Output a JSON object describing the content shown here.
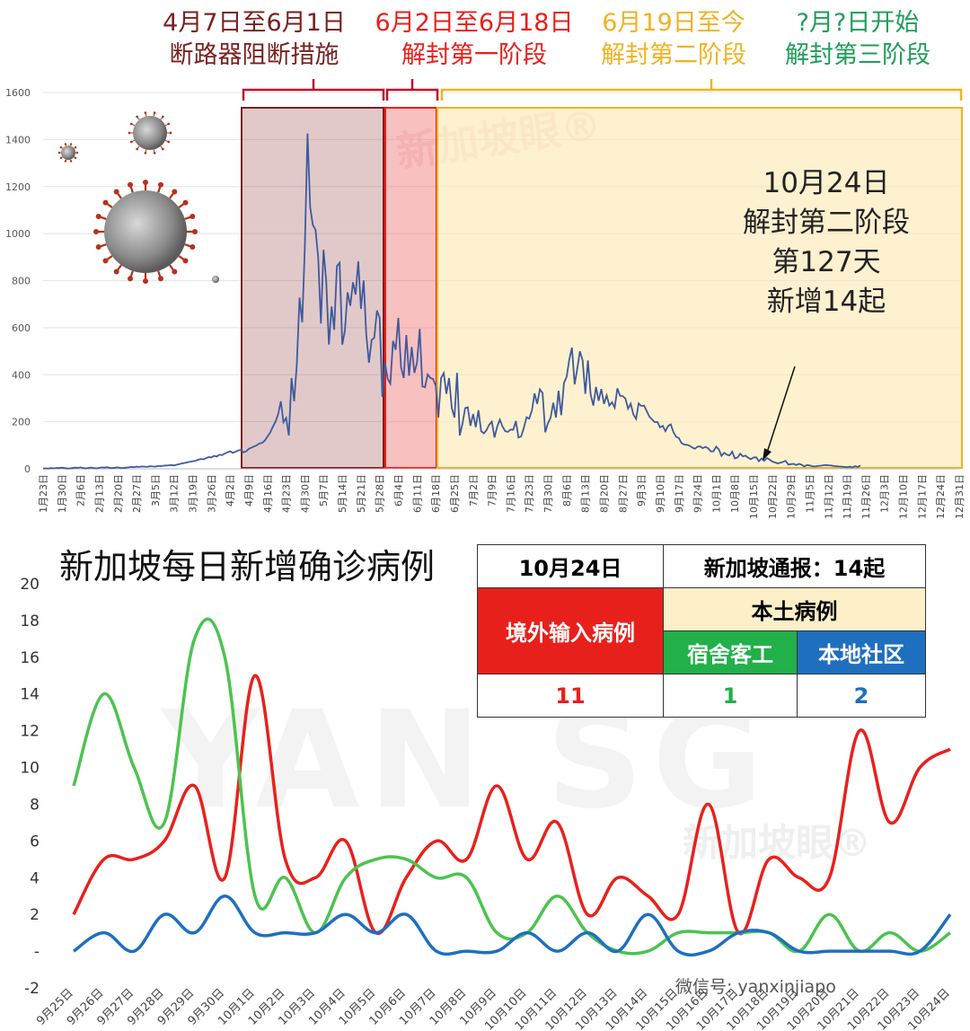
{
  "phases": [
    {
      "line1": "4月7日至6月1日",
      "line2": "断路器阻断措施",
      "color": "#7a1f1f"
    },
    {
      "line1": "6月2日至6月18日",
      "line2": "解封第一阶段",
      "color": "#e8201c"
    },
    {
      "line1": "6月19日至今",
      "line2": "解封第二阶段",
      "color": "#f0b323"
    },
    {
      "line1": "?月?日开始",
      "line2": "解封第三阶段",
      "color": "#1f9e5a"
    }
  ],
  "annotation": {
    "line1": "10月24日",
    "line2": "解封第二阶段",
    "line3": "第127天",
    "line4": "新增14起"
  },
  "watermarks": {
    "top": "新加坡眼®",
    "bottom": "新加坡眼®",
    "big": "YAN SG"
  },
  "bottom_title": "新加坡每日新增确诊病例",
  "table": {
    "date": "10月24日",
    "report": "新加坡通报：14起",
    "imported": "境外输入病例",
    "local": "本土病例",
    "dorm": "宿舍客工",
    "community": "本地社区",
    "imported_val": "11",
    "dorm_val": "1",
    "community_val": "2",
    "colors": {
      "imported": "#e8201c",
      "dorm": "#22b04a",
      "community": "#1f6fbf",
      "local_bg": "#fdf0c8"
    }
  },
  "wechat": "微信号: yanxinjiapo",
  "chart_data": [
    {
      "type": "line",
      "ylim": [
        0,
        1600
      ],
      "yticks": [
        0,
        200,
        400,
        600,
        800,
        1000,
        1200,
        1400,
        1600
      ],
      "x_tick_labels": [
        "1月23日",
        "1月30日",
        "2月6日",
        "2月13日",
        "2月20日",
        "2月27日",
        "3月5日",
        "3月12日",
        "3月19日",
        "3月26日",
        "4月2日",
        "4月9日",
        "4月16日",
        "4月23日",
        "4月30日",
        "5月7日",
        "5月14日",
        "5月21日",
        "5月28日",
        "6月4日",
        "6月11日",
        "6月18日",
        "6月25日",
        "7月2日",
        "7月9日",
        "7月16日",
        "7月23日",
        "7月30日",
        "8月6日",
        "8月13日",
        "8月20日",
        "8月27日",
        "9月3日",
        "9月10日",
        "9月17日",
        "9月24日",
        "10月1日",
        "10月8日",
        "10月15日",
        "10月22日",
        "10月29日",
        "11月5日",
        "11月12日",
        "11月19日",
        "11月26日",
        "12月3日",
        "12月10日",
        "12月17日",
        "12月24日",
        "12月31日"
      ],
      "series": [
        {
          "color": "#3d5a9e",
          "values": [
            1,
            2,
            1,
            3,
            2,
            4,
            3,
            5,
            3,
            1,
            2,
            3,
            5,
            4,
            6,
            3,
            2,
            4,
            5,
            3,
            2,
            4,
            6,
            5,
            7,
            4,
            3,
            5,
            6,
            4,
            3,
            5,
            6,
            8,
            7,
            9,
            8,
            10,
            9,
            8,
            11,
            10,
            9,
            12,
            11,
            13,
            14,
            15,
            16,
            14,
            17,
            20,
            23,
            25,
            28,
            30,
            32,
            34,
            38,
            42,
            40,
            45,
            50,
            48,
            55,
            52,
            60,
            58,
            65,
            70,
            75,
            68,
            72,
            78,
            80,
            70,
            74,
            85,
            90,
            95,
            100,
            108,
            110,
            120,
            137,
            154,
            178,
            200,
            233,
            287,
            198,
            216,
            142,
            386,
            287,
            447,
            728,
            623,
            942,
            1426,
            1111,
            1037,
            1016,
            897,
            618,
            931,
            799,
            528,
            690,
            591,
            862,
            876,
            528,
            587,
            750,
            693,
            793,
            741,
            882,
            680,
            801,
            570,
            451,
            548,
            557,
            673,
            642,
            305,
            451,
            383,
            362,
            544,
            506,
            642,
            432,
            386,
            569,
            396,
            518,
            408,
            451,
            595,
            350,
            347,
            401,
            386,
            382,
            354,
            218,
            386,
            407,
            319,
            386,
            259,
            218,
            408,
            142,
            191,
            258,
            262,
            183,
            233,
            177,
            249,
            160,
            151,
            164,
            187,
            201,
            133,
            178,
            209,
            180,
            160,
            157,
            167,
            166,
            203,
            133,
            138,
            175,
            219,
            213,
            248,
            320,
            276,
            338,
            322,
            155,
            193,
            216,
            281,
            218,
            332,
            228,
            365,
            391,
            464,
            515,
            359,
            427,
            500,
            461,
            319,
            461,
            317,
            269,
            348,
            289,
            339,
            276,
            312,
            269,
            283,
            260,
            342,
            311,
            309,
            299,
            256,
            277,
            231,
            212,
            278,
            267,
            269,
            245,
            222,
            210,
            198,
            199,
            176,
            183,
            160,
            182,
            189,
            156,
            136,
            131,
            110,
            103,
            102,
            98,
            91,
            85,
            94,
            95,
            88,
            93,
            87,
            74,
            74,
            94,
            82,
            55,
            68,
            60,
            57,
            73,
            44,
            48,
            64,
            53,
            56,
            47,
            41,
            48,
            49,
            32,
            44,
            34,
            46,
            39,
            31,
            27,
            23,
            26,
            29,
            34,
            18,
            20,
            21,
            16,
            21,
            17,
            10,
            16,
            14,
            11,
            10,
            12,
            13,
            15,
            16,
            15,
            14,
            12,
            11,
            10,
            9,
            8,
            7,
            9,
            6,
            11,
            8,
            14
          ]
        }
      ]
    },
    {
      "type": "line",
      "ylim": [
        -2,
        20
      ],
      "yticks": [
        -2,
        0,
        2,
        4,
        6,
        8,
        10,
        12,
        14,
        16,
        18,
        20
      ],
      "ytick_labels": [
        "-2",
        "-",
        "2",
        "4",
        "6",
        "8",
        "10",
        "12",
        "14",
        "16",
        "18",
        "20"
      ],
      "categories": [
        "9月25日",
        "9月26日",
        "9月27日",
        "9月28日",
        "9月29日",
        "9月30日",
        "10月1日",
        "10月2日",
        "10月3日",
        "10月4日",
        "10月5日",
        "10月6日",
        "10月7日",
        "10月8日",
        "10月9日",
        "10月10日",
        "10月11日",
        "10月12日",
        "10月13日",
        "10月14日",
        "10月15日",
        "10月16日",
        "10月17日",
        "10月18日",
        "10月19日",
        "10月20日",
        "10月21日",
        "10月22日",
        "10月23日",
        "10月24日"
      ],
      "series": [
        {
          "name": "境外输入病例",
          "color": "#e8201c",
          "values": [
            2,
            5,
            5,
            6,
            9,
            4,
            15,
            5,
            4,
            6,
            1,
            4,
            6,
            5,
            9,
            5,
            7,
            2,
            4,
            3,
            2,
            8,
            1,
            5,
            4,
            4,
            12,
            7,
            10,
            11
          ]
        },
        {
          "name": "宿舍客工",
          "color": "#4cc34f",
          "values": [
            9,
            14,
            10,
            7,
            17,
            16,
            3,
            4,
            1,
            4,
            5,
            5,
            4,
            4,
            1,
            1,
            3,
            1,
            0,
            0,
            1,
            1,
            1,
            1,
            0,
            2,
            0,
            1,
            0,
            1
          ]
        },
        {
          "name": "本地社区",
          "color": "#1f6fbf",
          "values": [
            0,
            1,
            0,
            2,
            1,
            3,
            1,
            1,
            1,
            2,
            1,
            2,
            0,
            0,
            0,
            1,
            0,
            1,
            0,
            2,
            0,
            0,
            1,
            1,
            0,
            0,
            0,
            0,
            0,
            2
          ]
        }
      ]
    }
  ]
}
